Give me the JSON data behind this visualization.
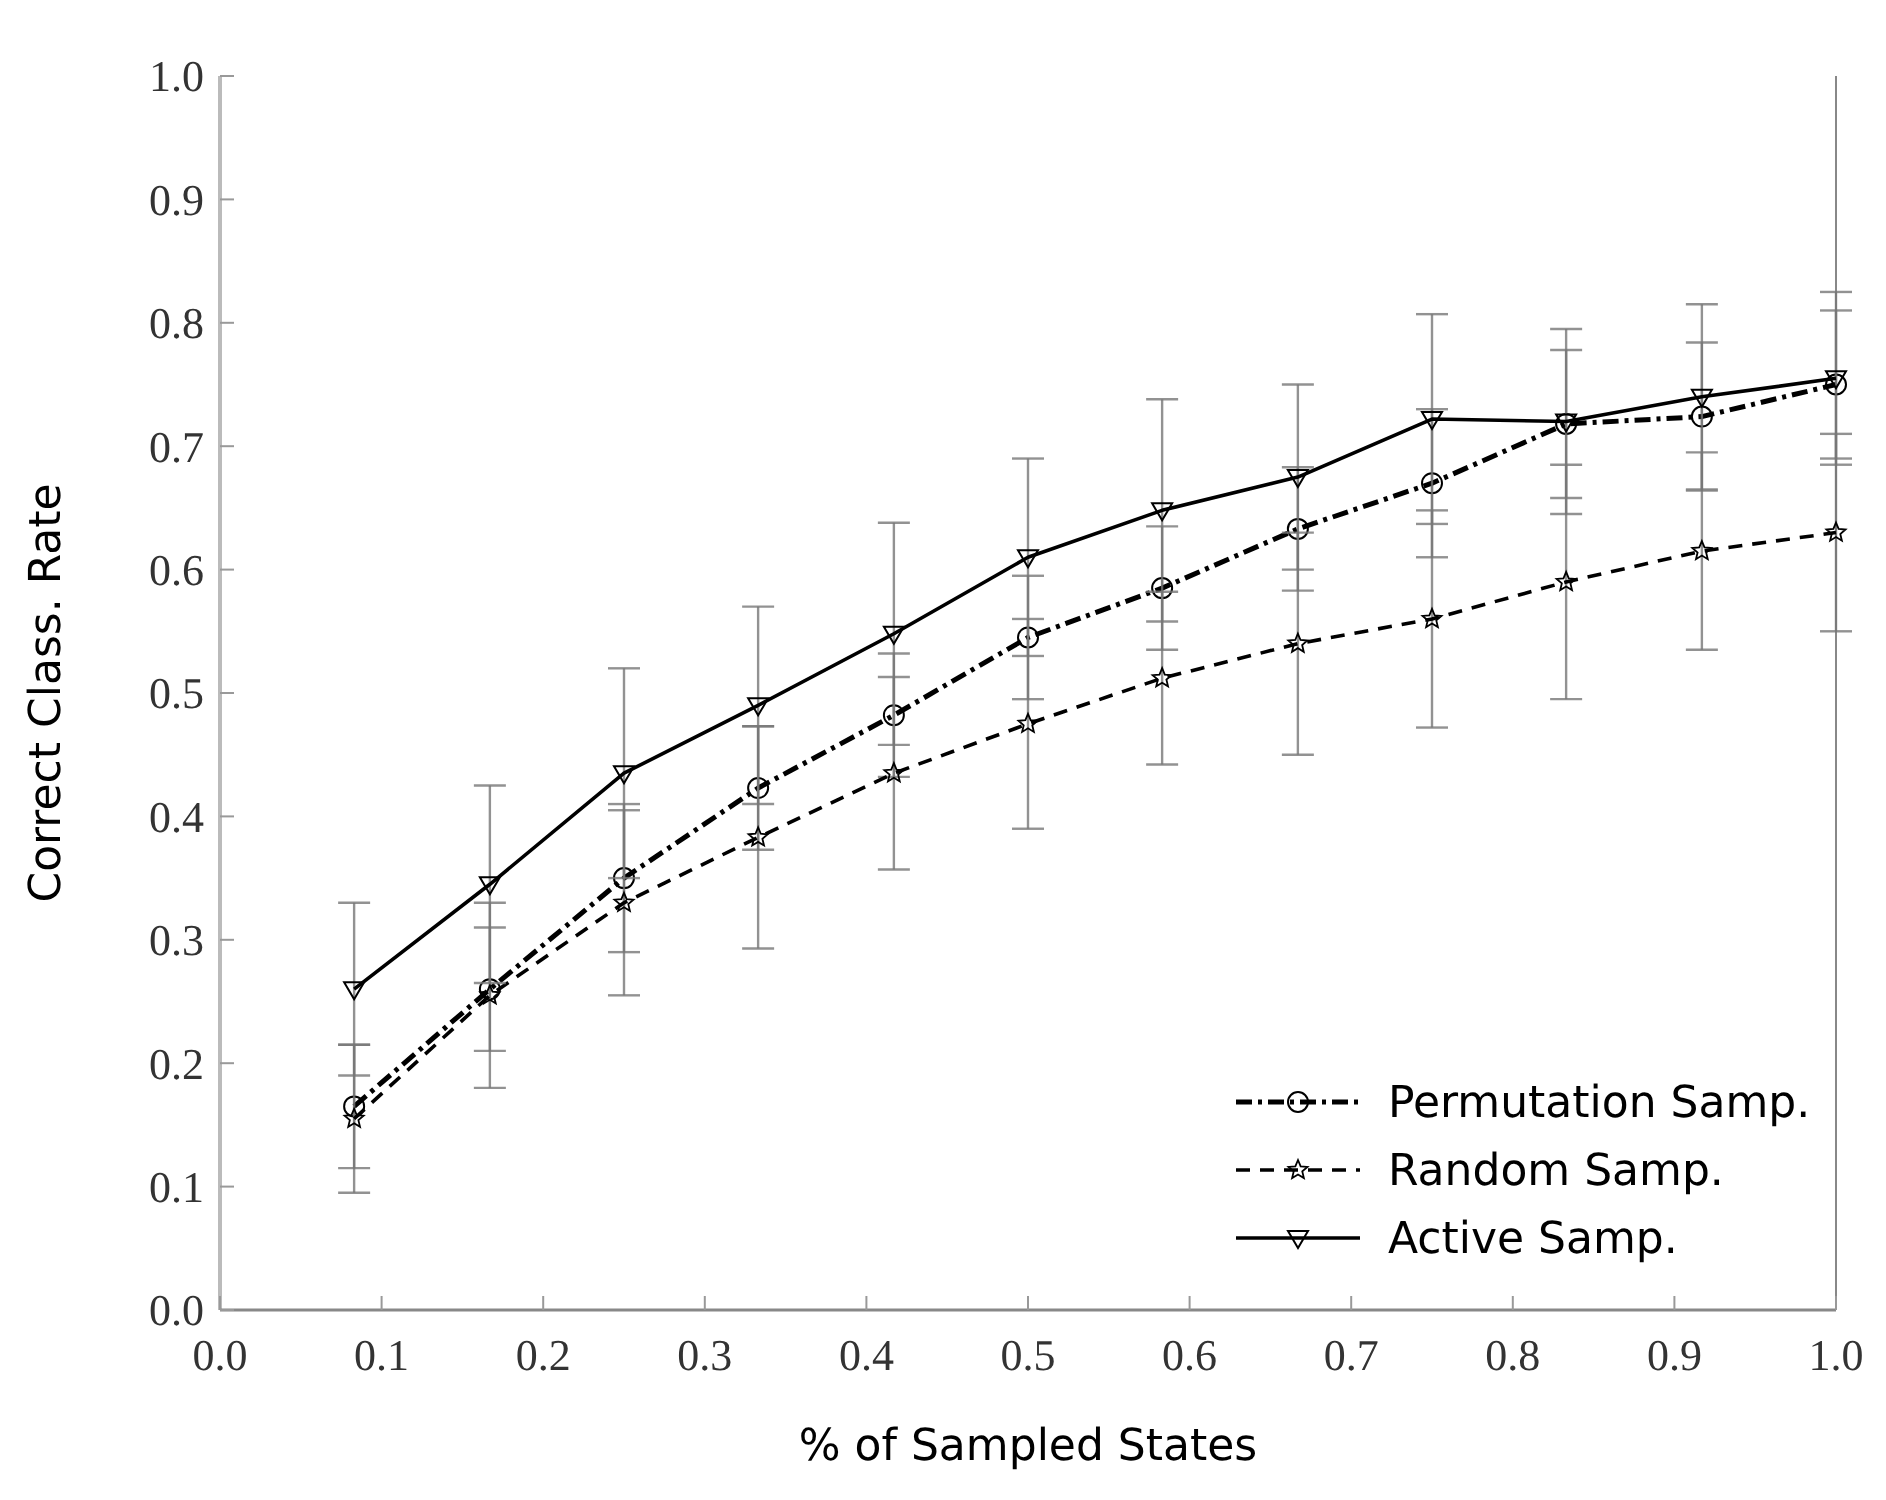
{
  "chart_data": {
    "type": "line",
    "xlabel": "% of Sampled States",
    "ylabel": "Correct Class. Rate",
    "x": [
      0.083,
      0.167,
      0.25,
      0.333,
      0.417,
      0.5,
      0.583,
      0.667,
      0.75,
      0.833,
      0.917,
      1.0
    ],
    "xlim": [
      0,
      1
    ],
    "xticks": [
      {
        "value": 0,
        "label": "0.0"
      },
      0.1,
      0.2,
      0.3,
      0.4,
      0.5,
      0.6,
      0.7,
      0.8,
      0.9,
      {
        "value": 1,
        "label": "1.0"
      }
    ],
    "ylim": [
      0,
      1
    ],
    "yticks": [
      {
        "value": 0,
        "label": "0.0"
      },
      0.1,
      0.2,
      0.3,
      0.4,
      0.5,
      0.6,
      0.7,
      0.8,
      0.9,
      {
        "value": 1,
        "label": "1.0"
      }
    ],
    "grid": false,
    "legend": "bottom right",
    "series": [
      {
        "name": "Permutation Samp.",
        "color": "#000000",
        "marker": "circle",
        "line_style": "dotted",
        "values": [
          0.165,
          0.26,
          0.35,
          0.423,
          0.482,
          0.545,
          0.585,
          0.633,
          0.67,
          0.718,
          0.724,
          0.75
        ],
        "errors": [
          0.05,
          0.05,
          0.06,
          0.05,
          0.05,
          0.05,
          0.05,
          0.05,
          0.06,
          0.06,
          0.06,
          0.06
        ]
      },
      {
        "name": "Random Samp.",
        "color": "#000000",
        "marker": "star",
        "line_style": "dashed",
        "values": [
          0.155,
          0.255,
          0.33,
          0.383,
          0.435,
          0.475,
          0.512,
          0.54,
          0.56,
          0.59,
          0.615,
          0.63
        ],
        "errors": [
          0.06,
          0.075,
          0.075,
          0.09,
          0.078,
          0.085,
          0.07,
          0.09,
          0.088,
          0.095,
          0.08,
          0.08
        ]
      },
      {
        "name": "Active Samp.",
        "color": "#000000",
        "marker": "triangle",
        "line_style": "solid",
        "values": [
          0.26,
          0.345,
          0.435,
          0.49,
          0.548,
          0.61,
          0.648,
          0.675,
          0.722,
          0.72,
          0.74,
          0.755
        ],
        "errors": [
          0.07,
          0.08,
          0.085,
          0.08,
          0.09,
          0.08,
          0.09,
          0.075,
          0.085,
          0.075,
          0.075,
          0.07
        ]
      }
    ]
  }
}
